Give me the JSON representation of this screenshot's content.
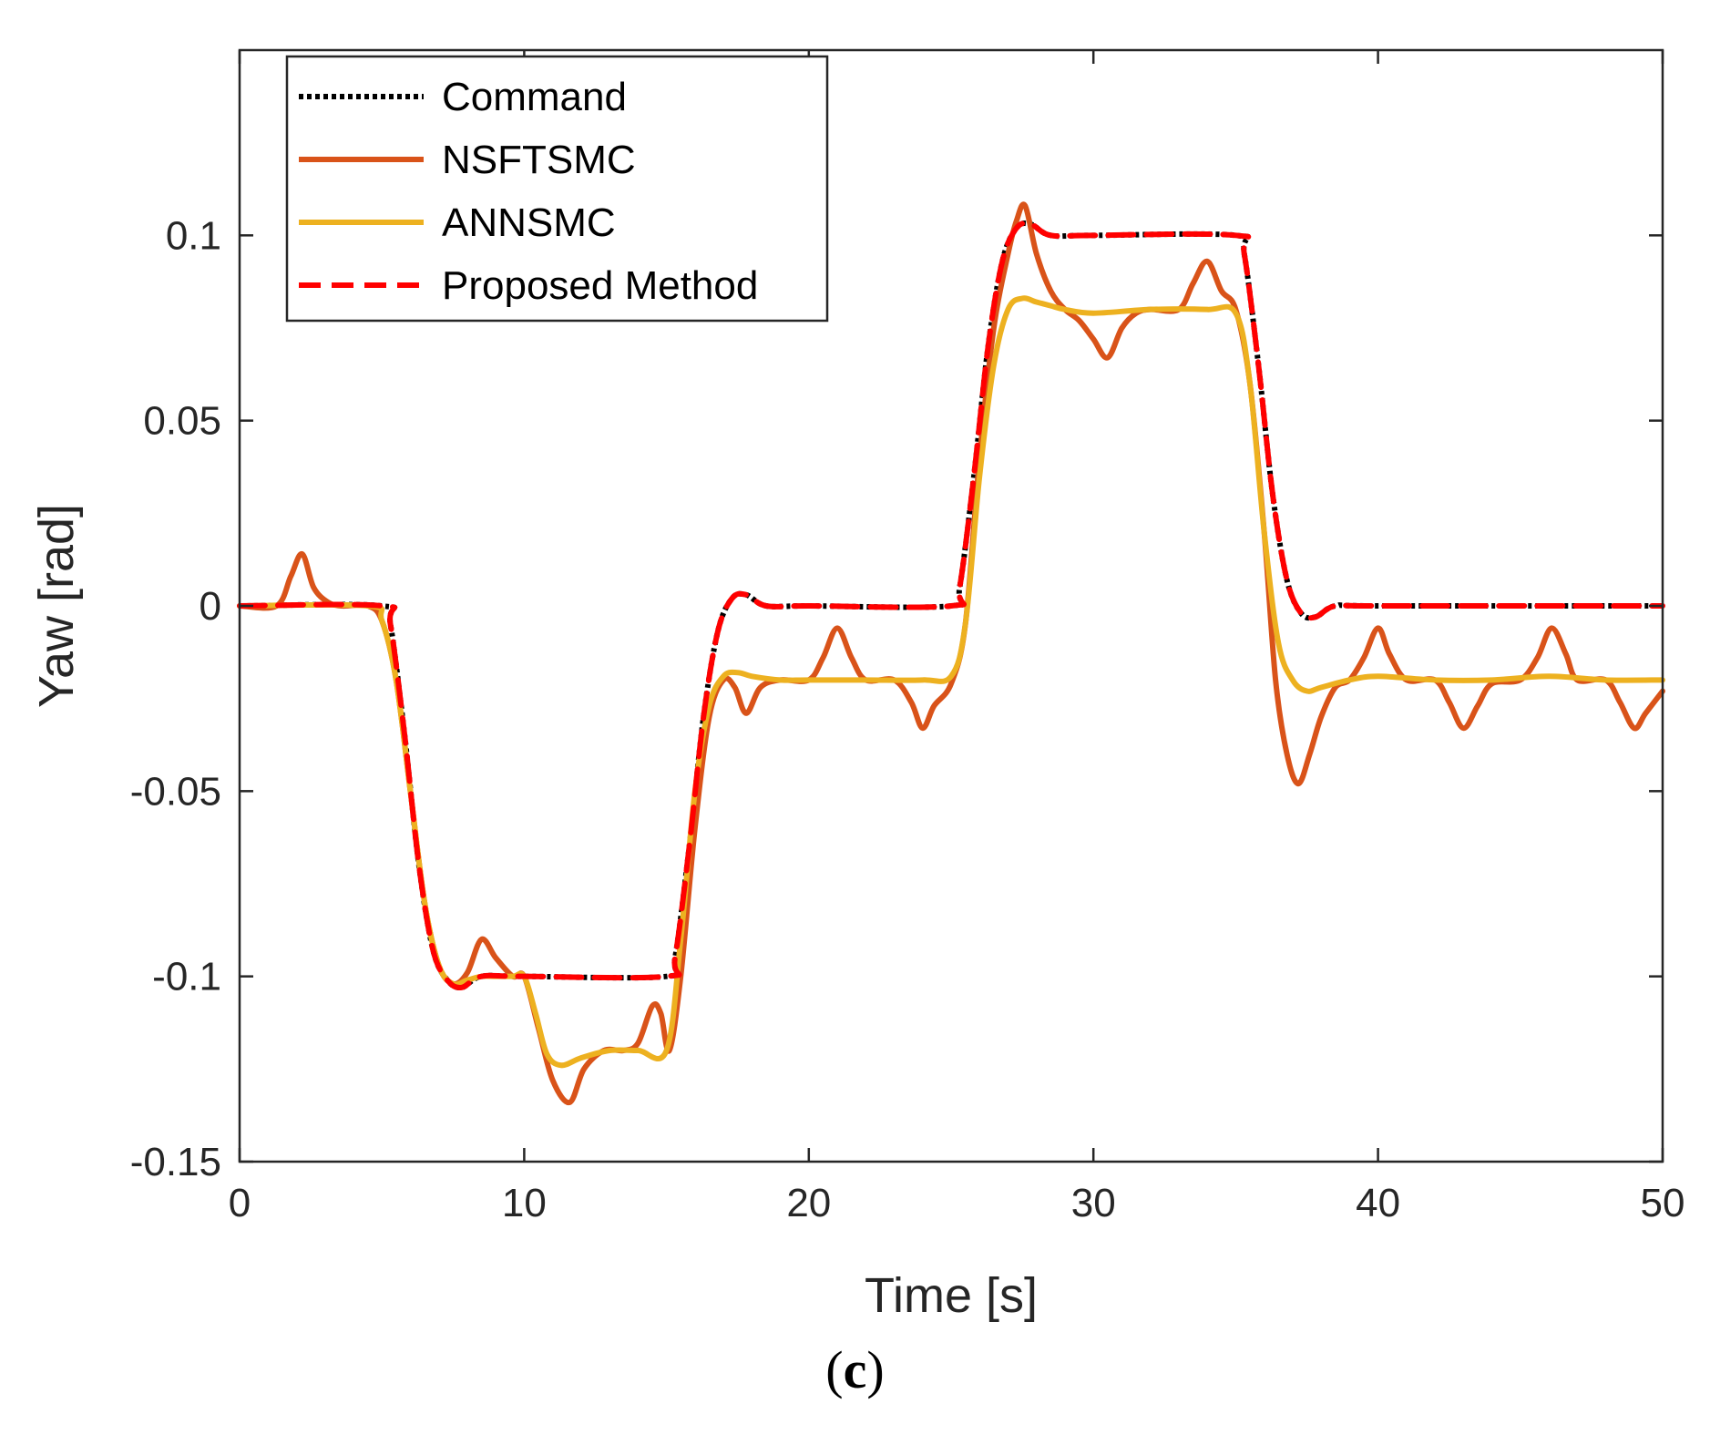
{
  "caption": {
    "open": "(",
    "letter": "c",
    "close": ")"
  },
  "chart_data": {
    "type": "line",
    "title": "",
    "xlabel": "Time [s]",
    "ylabel": "Yaw [rad]",
    "xlim": [
      0,
      50
    ],
    "ylim": [
      -0.15,
      0.15
    ],
    "grid": false,
    "legend_position": "top-left",
    "xticks": [
      0,
      10,
      20,
      30,
      40,
      50
    ],
    "xtick_labels": [
      "0",
      "10",
      "20",
      "30",
      "40",
      "50"
    ],
    "yticks": [
      -0.15,
      -0.1,
      -0.05,
      0,
      0.05,
      0.1
    ],
    "ytick_labels": [
      "-0.15",
      "-0.1",
      "-0.05",
      "0",
      "0.05",
      "0.1"
    ],
    "series": [
      {
        "name": "Command",
        "color": "#000000",
        "style": "dotted",
        "x": [
          0,
          5,
          5.3,
          5.8,
          6.3,
          6.8,
          7.3,
          7.8,
          8.5,
          10,
          15,
          15.3,
          15.8,
          16.3,
          16.8,
          17.3,
          17.8,
          18.5,
          20,
          25,
          25.3,
          25.8,
          26.3,
          26.8,
          27.3,
          27.8,
          28.5,
          30,
          35,
          35.3,
          35.8,
          36.3,
          36.8,
          37.3,
          37.8,
          38.5,
          40,
          50
        ],
        "y": [
          0,
          0,
          -0.005,
          -0.035,
          -0.07,
          -0.093,
          -0.101,
          -0.103,
          -0.1,
          -0.1,
          -0.1,
          -0.095,
          -0.065,
          -0.03,
          -0.007,
          0.002,
          0.003,
          0,
          0,
          0,
          0.005,
          0.035,
          0.07,
          0.093,
          0.102,
          0.103,
          0.1,
          0.1,
          0.1,
          0.095,
          0.065,
          0.03,
          0.007,
          -0.002,
          -0.003,
          0,
          0,
          0
        ]
      },
      {
        "name": "NSFTSMC",
        "color": "#D95319",
        "style": "solid",
        "x": [
          0,
          1.3,
          1.8,
          2.2,
          2.6,
          3.1,
          3.6,
          4.5,
          5,
          5.5,
          6,
          6.5,
          7,
          7.5,
          8,
          8.5,
          9,
          9.6,
          10,
          10.5,
          11,
          11.6,
          12.1,
          12.8,
          13.5,
          14,
          14.5,
          14.8,
          15.1,
          15.5,
          16,
          16.5,
          17,
          17.4,
          17.8,
          18.3,
          19,
          20,
          20.5,
          21,
          21.5,
          22,
          23,
          23.6,
          24,
          24.4,
          25,
          25.5,
          26,
          26.5,
          27,
          27.3,
          27.6,
          28,
          28.5,
          29,
          29.5,
          30,
          30.5,
          31,
          31.5,
          32,
          33,
          33.5,
          34,
          34.5,
          35,
          35.5,
          36,
          36.4,
          36.8,
          37.2,
          37.6,
          38,
          38.5,
          39,
          39.5,
          40,
          40.4,
          41,
          42,
          42.5,
          43,
          43.5,
          44,
          45,
          45.6,
          46.1,
          46.6,
          47,
          48,
          48.5,
          49,
          49.4,
          50
        ],
        "y": [
          0,
          0,
          0.008,
          0.014,
          0.005,
          0.001,
          0,
          0,
          -0.004,
          -0.02,
          -0.05,
          -0.08,
          -0.097,
          -0.102,
          -0.099,
          -0.09,
          -0.095,
          -0.1,
          -0.1,
          -0.114,
          -0.128,
          -0.134,
          -0.125,
          -0.12,
          -0.12,
          -0.118,
          -0.108,
          -0.11,
          -0.12,
          -0.1,
          -0.06,
          -0.03,
          -0.02,
          -0.022,
          -0.029,
          -0.022,
          -0.02,
          -0.02,
          -0.014,
          -0.006,
          -0.014,
          -0.02,
          -0.02,
          -0.026,
          -0.033,
          -0.027,
          -0.021,
          -0.005,
          0.04,
          0.075,
          0.095,
          0.104,
          0.108,
          0.095,
          0.085,
          0.08,
          0.077,
          0.072,
          0.067,
          0.075,
          0.079,
          0.08,
          0.08,
          0.087,
          0.093,
          0.085,
          0.08,
          0.06,
          0.02,
          -0.02,
          -0.04,
          -0.048,
          -0.04,
          -0.03,
          -0.022,
          -0.02,
          -0.014,
          -0.006,
          -0.013,
          -0.02,
          -0.02,
          -0.026,
          -0.033,
          -0.027,
          -0.021,
          -0.02,
          -0.014,
          -0.006,
          -0.013,
          -0.02,
          -0.02,
          -0.026,
          -0.033,
          -0.029,
          -0.023
        ]
      },
      {
        "name": "ANNSMC",
        "color": "#EDB120",
        "style": "solid",
        "x": [
          0,
          4.5,
          5,
          5.5,
          6,
          6.5,
          7,
          7.5,
          8,
          8.5,
          9,
          9.6,
          10,
          10.4,
          10.8,
          11.3,
          12,
          13,
          14,
          15,
          15.5,
          16,
          16.5,
          17,
          17.5,
          18,
          19,
          20,
          22,
          24,
          25,
          25.5,
          26,
          26.5,
          27,
          27.5,
          28,
          28.5,
          29,
          30,
          32,
          34,
          35,
          35.5,
          36,
          36.5,
          37,
          37.5,
          38,
          39,
          40,
          42,
          44,
          46,
          48,
          50
        ],
        "y": [
          0,
          0,
          -0.004,
          -0.02,
          -0.05,
          -0.08,
          -0.097,
          -0.102,
          -0.101,
          -0.1,
          -0.1,
          -0.1,
          -0.1,
          -0.11,
          -0.121,
          -0.124,
          -0.122,
          -0.12,
          -0.12,
          -0.12,
          -0.09,
          -0.05,
          -0.027,
          -0.019,
          -0.018,
          -0.019,
          -0.02,
          -0.02,
          -0.02,
          -0.02,
          -0.019,
          -0.005,
          0.035,
          0.065,
          0.08,
          0.083,
          0.082,
          0.081,
          0.08,
          0.079,
          0.08,
          0.08,
          0.079,
          0.06,
          0.02,
          -0.01,
          -0.02,
          -0.023,
          -0.022,
          -0.02,
          -0.019,
          -0.02,
          -0.02,
          -0.019,
          -0.02,
          -0.02
        ]
      },
      {
        "name": "Proposed Method",
        "color": "#FF0000",
        "style": "dashed",
        "x": [
          0,
          5,
          5.3,
          5.8,
          6.3,
          6.8,
          7.3,
          7.8,
          8.5,
          10,
          15,
          15.3,
          15.8,
          16.3,
          16.8,
          17.3,
          17.8,
          18.5,
          20,
          25,
          25.3,
          25.8,
          26.3,
          26.8,
          27.3,
          27.8,
          28.5,
          30,
          35,
          35.3,
          35.8,
          36.3,
          36.8,
          37.3,
          37.8,
          38.5,
          40,
          50
        ],
        "y": [
          0,
          0,
          -0.005,
          -0.035,
          -0.07,
          -0.093,
          -0.101,
          -0.103,
          -0.1,
          -0.1,
          -0.1,
          -0.095,
          -0.065,
          -0.03,
          -0.007,
          0.002,
          0.003,
          0,
          0,
          0,
          0.005,
          0.035,
          0.07,
          0.093,
          0.102,
          0.103,
          0.1,
          0.1,
          0.1,
          0.095,
          0.065,
          0.03,
          0.007,
          -0.002,
          -0.003,
          0,
          0,
          0
        ]
      }
    ]
  }
}
